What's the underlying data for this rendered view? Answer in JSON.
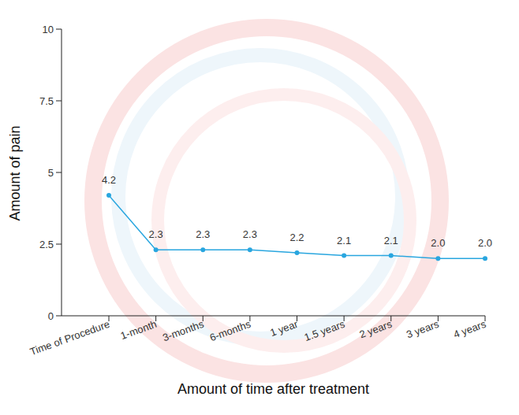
{
  "chart_data": {
    "type": "line",
    "x_label": "Amount of time after treatment",
    "y_label": "Amount of pain",
    "categories": [
      "Time of Procedure",
      "1-month",
      "3-months",
      "6-months",
      "1 year",
      "1.5 years",
      "2 years",
      "3 years",
      "4 years"
    ],
    "values": [
      4.2,
      2.3,
      2.3,
      2.3,
      2.2,
      2.1,
      2.1,
      2.0,
      2.0
    ],
    "value_labels": [
      "4.2",
      "2.3",
      "2.3",
      "2.3",
      "2.2",
      "2.1",
      "2.1",
      "2.0",
      "2.0"
    ],
    "color": "#29a6df",
    "marker": "circle",
    "data_labels": true,
    "grid": false,
    "ylim": [
      0,
      10
    ],
    "yticks": [
      0,
      2.5,
      5,
      7.5,
      10
    ]
  }
}
